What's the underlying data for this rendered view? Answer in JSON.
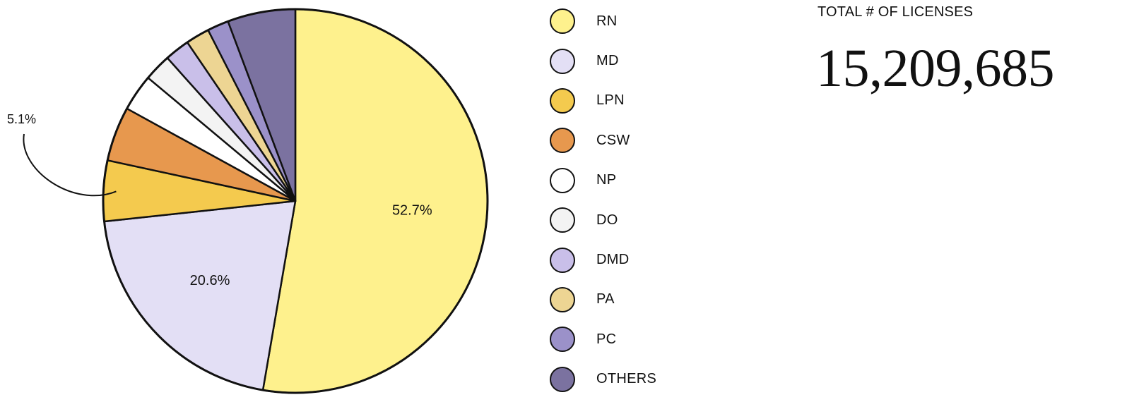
{
  "chart_data": {
    "type": "pie",
    "slices": [
      {
        "label": "RN",
        "value": 52.7,
        "color": "#FEF18D",
        "data_label": "52.7%"
      },
      {
        "label": "MD",
        "value": 20.6,
        "color": "#E3DFF5",
        "data_label": "20.6%"
      },
      {
        "label": "LPN",
        "value": 5.1,
        "color": "#F4CA4E",
        "data_label": "5.1%"
      },
      {
        "label": "CSW",
        "value": 4.6,
        "color": "#E7984E",
        "data_label": ""
      },
      {
        "label": "NP",
        "value": 3.1,
        "color": "#FFFFFF",
        "data_label": ""
      },
      {
        "label": "DO",
        "value": 2.3,
        "color": "#F3F3F3",
        "data_label": ""
      },
      {
        "label": "DMD",
        "value": 2.1,
        "color": "#C9BFE9",
        "data_label": ""
      },
      {
        "label": "PA",
        "value": 2.0,
        "color": "#EDD593",
        "data_label": ""
      },
      {
        "label": "PC",
        "value": 1.8,
        "color": "#9B91C9",
        "data_label": ""
      },
      {
        "label": "OTHERS",
        "value": 5.7,
        "color": "#7B72A0",
        "data_label": ""
      }
    ],
    "start": "12 o'clock",
    "direction": "clockwise",
    "legend_position": "right"
  },
  "legend": {
    "items": [
      {
        "label": "RN",
        "color": "#FEF18D"
      },
      {
        "label": "MD",
        "color": "#E3DFF5"
      },
      {
        "label": "LPN",
        "color": "#F4CA4E"
      },
      {
        "label": "CSW",
        "color": "#E7984E"
      },
      {
        "label": "NP",
        "color": "#FFFFFF"
      },
      {
        "label": "DO",
        "color": "#F3F3F3"
      },
      {
        "label": "DMD",
        "color": "#C9BFE9"
      },
      {
        "label": "PA",
        "color": "#EDD593"
      },
      {
        "label": "PC",
        "color": "#9B91C9"
      },
      {
        "label": "OTHERS",
        "color": "#7B72A0"
      }
    ]
  },
  "stat": {
    "label": "TOTAL # OF LICENSES",
    "value": "15,209,685"
  }
}
